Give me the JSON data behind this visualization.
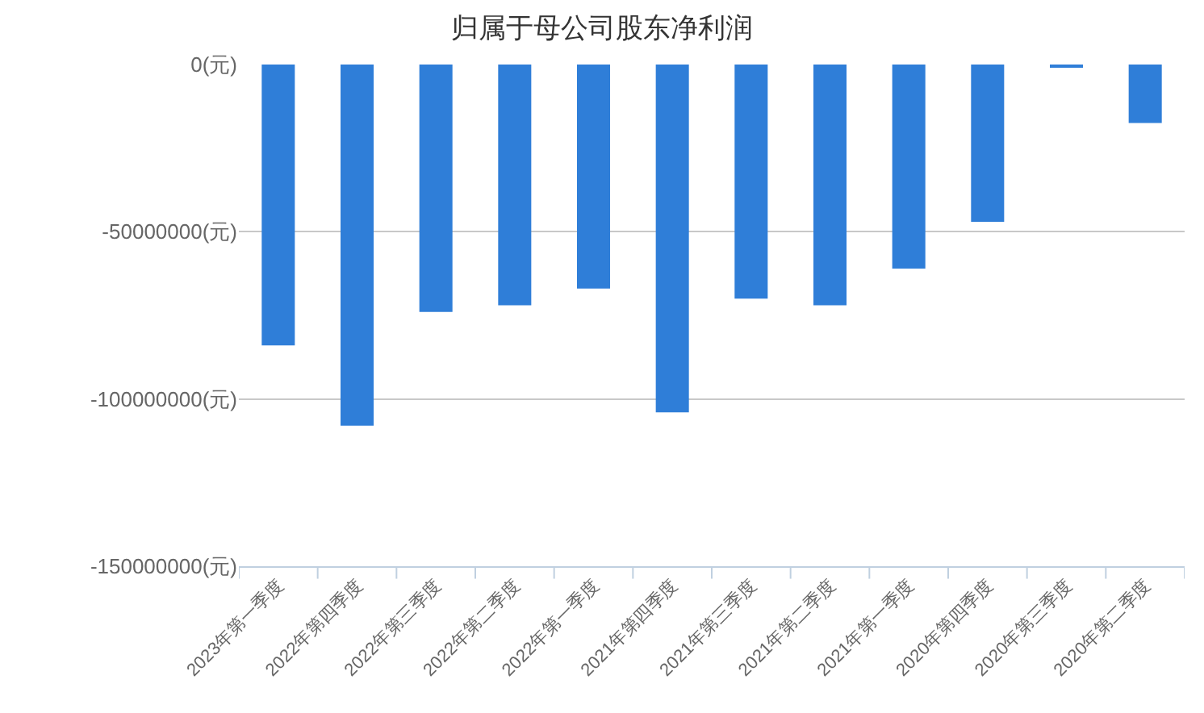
{
  "chart_data": {
    "type": "bar",
    "title": "归属于母公司股东净利润",
    "categories": [
      "2023年第一季度",
      "2022年第四季度",
      "2022年第三季度",
      "2022年第二季度",
      "2022年第一季度",
      "2021年第四季度",
      "2021年第三季度",
      "2021年第二季度",
      "2021年第一季度",
      "2020年第四季度",
      "2020年第三季度",
      "2020年第二季度"
    ],
    "values": [
      -84000000,
      -108000000,
      -74000000,
      -72000000,
      -67000000,
      -104000000,
      -70000000,
      -72000000,
      -61000000,
      -47000000,
      -500000,
      -17500000
    ],
    "color": "#2f7ed8",
    "ylim": [
      -150000000,
      0
    ],
    "yticks": [
      {
        "value": -150000000,
        "label": "-150000000(元)"
      },
      {
        "value": -100000000,
        "label": "-100000000(元)"
      },
      {
        "value": -50000000,
        "label": "-50000000(元)"
      },
      {
        "value": 0,
        "label": "0(元)"
      }
    ],
    "grid": "y"
  }
}
